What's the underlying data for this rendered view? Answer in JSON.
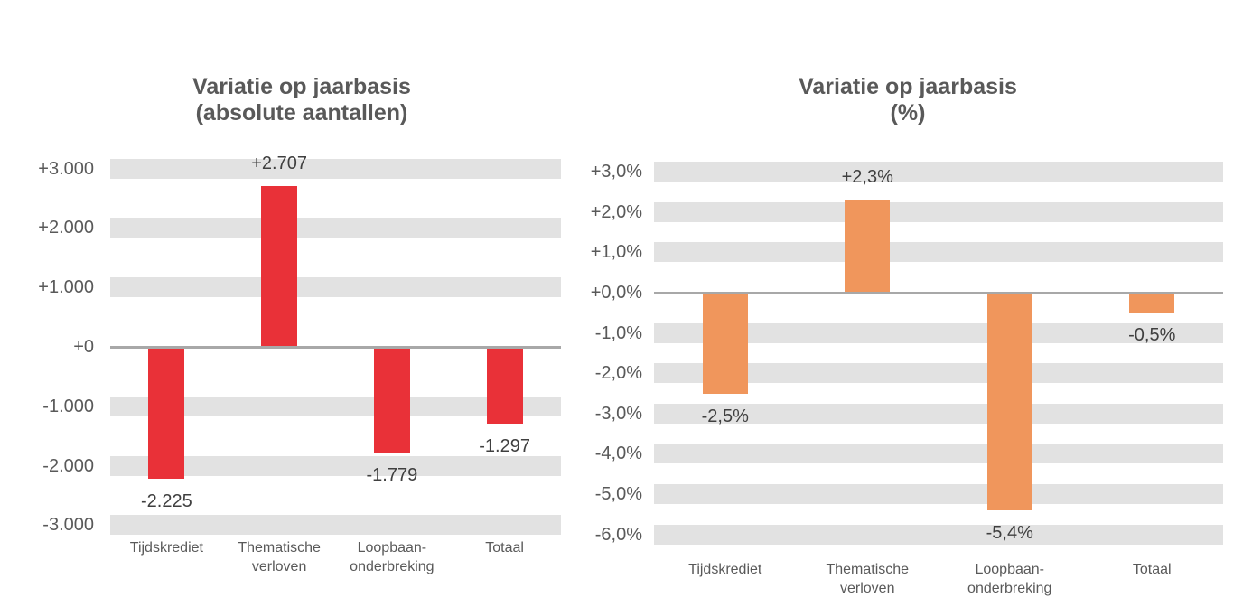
{
  "page": {
    "background": "#ffffff"
  },
  "colors": {
    "title_text": "#595959",
    "axis_tick_text": "#595959",
    "category_text": "#595959",
    "data_label_text": "#3f3f3f",
    "grid_band": "#e2e2e2",
    "zero_line": "#a8a8a8",
    "red_bar": "#e93138",
    "orange_bar": "#f0965c"
  },
  "chart_data": [
    {
      "type": "bar",
      "title": "Variatie op jaarbasis (absolute aantallen)",
      "title_lines": [
        "Variatie op jaarbasis",
        "(absolute aantallen)"
      ],
      "categories": [
        "Tijdskrediet",
        "Thematische verloven",
        "Loopbaan-onderbreking",
        "Totaal"
      ],
      "category_labels": [
        "Tijdskrediet",
        "Thematische\nverloven",
        "Loopbaan-\nonderbreking",
        "Totaal"
      ],
      "values": [
        -2225,
        2707,
        -1779,
        -1297
      ],
      "data_labels": [
        "-2.225",
        "+2.707",
        "-1.779",
        "-1.297"
      ],
      "ylim": [
        -3000,
        3000
      ],
      "y_tick_step": 1000,
      "y_ticks": [
        {
          "value": 3000,
          "label": "+3.000"
        },
        {
          "value": 2000,
          "label": "+2.000"
        },
        {
          "value": 1000,
          "label": "+1.000"
        },
        {
          "value": 0,
          "label": "+0"
        },
        {
          "value": -1000,
          "label": "-1.000"
        },
        {
          "value": -2000,
          "label": "-2.000"
        },
        {
          "value": -3000,
          "label": "-3.000"
        }
      ],
      "bar_color": "#e93138",
      "grid": "horizontal-thick-bands",
      "legend": "none",
      "xlabel": "",
      "ylabel": ""
    },
    {
      "type": "bar",
      "title": "Variatie op jaarbasis (%)",
      "title_lines": [
        "Variatie op jaarbasis",
        "(%)"
      ],
      "categories": [
        "Tijdskrediet",
        "Thematische verloven",
        "Loopbaan-onderbreking",
        "Totaal"
      ],
      "category_labels": [
        "Tijdskrediet",
        "Thematische\nverloven",
        "Loopbaan-\nonderbreking",
        "Totaal"
      ],
      "values": [
        -2.5,
        2.3,
        -5.4,
        -0.5
      ],
      "data_labels": [
        "-2,5%",
        "+2,3%",
        "-5,4%",
        "-0,5%"
      ],
      "ylim": [
        -6,
        3
      ],
      "y_tick_step": 1,
      "y_ticks": [
        {
          "value": 3,
          "label": "+3,0%"
        },
        {
          "value": 2,
          "label": "+2,0%"
        },
        {
          "value": 1,
          "label": "+1,0%"
        },
        {
          "value": 0,
          "label": "+0,0%"
        },
        {
          "value": -1,
          "label": "-1,0%"
        },
        {
          "value": -2,
          "label": "-2,0%"
        },
        {
          "value": -3,
          "label": "-3,0%"
        },
        {
          "value": -4,
          "label": "-4,0%"
        },
        {
          "value": -5,
          "label": "-5,0%"
        },
        {
          "value": -6,
          "label": "-6,0%"
        }
      ],
      "bar_color": "#f0965c",
      "grid": "horizontal-thick-bands",
      "legend": "none",
      "xlabel": "",
      "ylabel": ""
    }
  ]
}
